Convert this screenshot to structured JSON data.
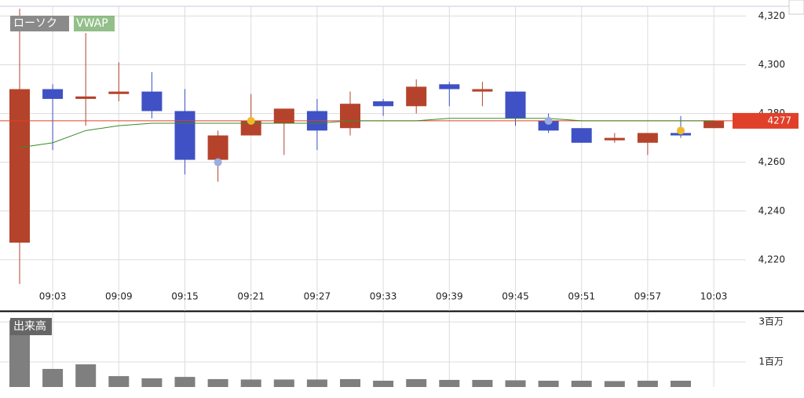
{
  "chart_data": [
    {
      "type": "candlestick",
      "name": "ローソク",
      "categories": [
        null,
        "09:03",
        null,
        "09:09",
        null,
        "09:15",
        null,
        "09:21",
        null,
        "09:27",
        null,
        "09:33",
        null,
        "09:39",
        null,
        "09:45",
        null,
        "09:51",
        null,
        "09:57",
        null,
        "10:03"
      ],
      "open": [
        4227,
        4290,
        4286,
        4288,
        4289,
        4281,
        4261,
        4271,
        4276,
        4281,
        4274,
        4285,
        4283,
        4292,
        4289,
        4289,
        4277,
        4274,
        4269,
        4268,
        4272,
        4274
      ],
      "high": [
        4323,
        4292,
        4313,
        4301,
        4297,
        4290,
        4273,
        4288,
        4282,
        4286,
        4289,
        4286,
        4294,
        4293,
        4293,
        4289,
        4280,
        4274,
        4272,
        4272,
        4279,
        4277
      ],
      "low": [
        4210,
        4265,
        4275,
        4285,
        4278,
        4255,
        4252,
        4271,
        4263,
        4265,
        4271,
        4279,
        4280,
        4283,
        4283,
        4275,
        4272,
        4268,
        4268,
        4263,
        4270,
        4274
      ],
      "close": [
        4290,
        4286,
        4287,
        4289,
        4281,
        4261,
        4271,
        4277,
        4282,
        4273,
        4284,
        4283,
        4291,
        4290,
        4290,
        4278,
        4273,
        4268,
        4270,
        4272,
        4271,
        4277
      ],
      "up_color": "#b5432b",
      "down_color": "#3f51c4",
      "series": [
        {
          "name": "VWAP",
          "color": "#3a8a2a",
          "values": [
            4266,
            4268,
            4273,
            4275,
            4276,
            4276,
            4276,
            4276,
            4276,
            4276,
            4277,
            4277,
            4277,
            4278,
            4278,
            4278,
            4278,
            4277,
            4277,
            4277,
            4277,
            4277
          ]
        }
      ],
      "markers": [
        {
          "index": 6,
          "value": 4260,
          "color": "#9aaee0"
        },
        {
          "index": 7,
          "value": 4277,
          "color": "#f0b92a"
        },
        {
          "index": 16,
          "value": 4277,
          "color": "#9aaee0"
        },
        {
          "index": 20,
          "value": 4273,
          "color": "#f0b92a"
        }
      ],
      "last_price": 4277,
      "last_price_color": "#e0402a",
      "ylim": [
        4209,
        4324
      ],
      "yticks": [
        {
          "value": 4220,
          "label": "4,220"
        },
        {
          "value": 4240,
          "label": "4,240"
        },
        {
          "value": 4260,
          "label": "4,260"
        },
        {
          "value": 4280,
          "label": "4,280"
        },
        {
          "value": 4300,
          "label": "4,300"
        },
        {
          "value": 4320,
          "label": "4,320"
        }
      ],
      "grid": true
    },
    {
      "type": "bar",
      "title": "出来高",
      "color": "#7f7f7f",
      "values": [
        3080000,
        650000,
        880000,
        290000,
        180000,
        250000,
        140000,
        120000,
        120000,
        120000,
        140000,
        60000,
        140000,
        100000,
        100000,
        80000,
        60000,
        60000,
        40000,
        60000,
        60000,
        null
      ],
      "ylim": [
        0,
        3400000
      ],
      "yticks": [
        {
          "value": 1000000,
          "label": "1百万"
        },
        {
          "value": 3000000,
          "label": "3百万"
        }
      ],
      "grid": true
    }
  ]
}
